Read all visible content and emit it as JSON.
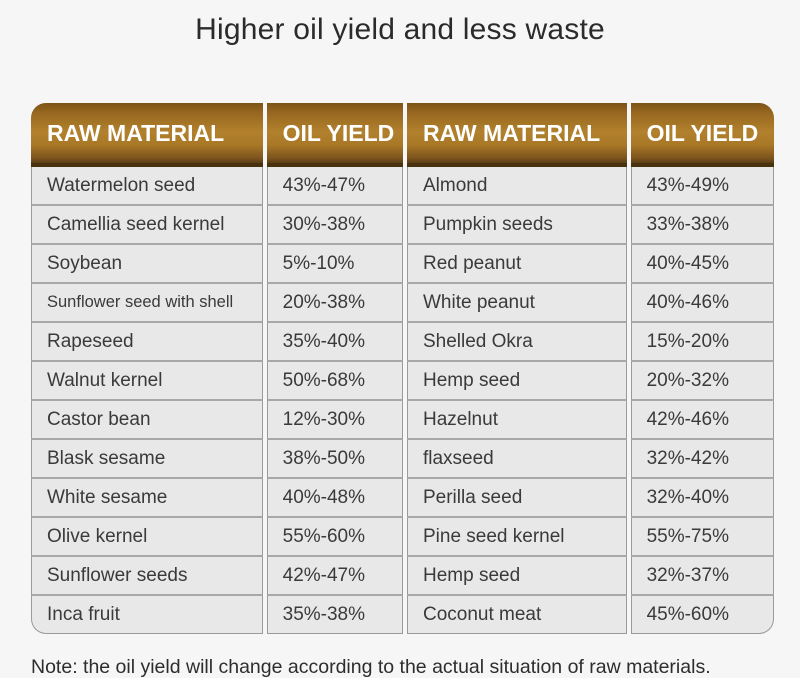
{
  "title": "Higher oil yield and less waste",
  "note": "Note: the oil yield will change according to the actual situation of raw materials.",
  "table": {
    "headers": [
      "RAW MATERIAL",
      "OIL YIELD",
      "RAW MATERIAL",
      "OIL YIELD"
    ],
    "rows": [
      [
        "Watermelon seed",
        "43%-47%",
        "Almond",
        "43%-49%"
      ],
      [
        "Camellia seed kernel",
        "30%-38%",
        "Pumpkin seeds",
        "33%-38%"
      ],
      [
        "Soybean",
        "5%-10%",
        "Red peanut",
        "40%-45%"
      ],
      [
        "Sunflower seed with shell",
        "20%-38%",
        "White peanut",
        "40%-46%"
      ],
      [
        "Rapeseed",
        "35%-40%",
        "Shelled Okra",
        "15%-20%"
      ],
      [
        "Walnut kernel",
        "50%-68%",
        "Hemp seed",
        "20%-32%"
      ],
      [
        "Castor bean",
        "12%-30%",
        "Hazelnut",
        "42%-46%"
      ],
      [
        "Blask sesame",
        "38%-50%",
        "flaxseed",
        "32%-42%"
      ],
      [
        "White sesame",
        "40%-48%",
        "Perilla seed",
        "32%-40%"
      ],
      [
        "Olive kernel",
        "55%-60%",
        "Pine seed kernel",
        "55%-75%"
      ],
      [
        "Sunflower seeds",
        "42%-47%",
        "Hemp seed",
        "32%-37%"
      ],
      [
        "Inca fruit",
        "35%-38%",
        "Coconut meat",
        "45%-60%"
      ]
    ]
  },
  "colors": {
    "page_bg": "#f6f6f6",
    "title_text": "#2b2b2b",
    "header_gradient_top": "#7c5318",
    "header_gradient_mid": "#b2812d",
    "header_gradient_bottom": "#5a3d16",
    "header_border_bottom": "#47310f",
    "header_text": "#ffffff",
    "cell_bg": "#e8e8e8",
    "cell_border": "#9a9a9a",
    "row_border": "#a8a8a8",
    "body_text": "#3a3a3a",
    "note_text": "#2d2d2d"
  }
}
